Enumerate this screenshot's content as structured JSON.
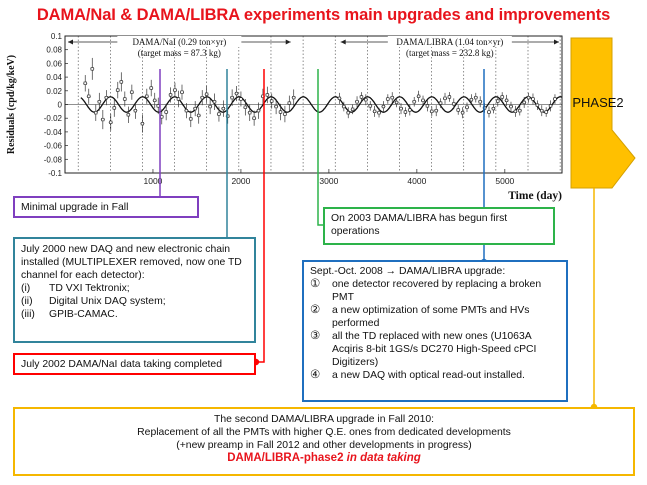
{
  "title": "DAMA/NaI & DAMA/LIBRA experiments main upgrades and improvements",
  "chart_data": {
    "type": "scatter",
    "title": "",
    "xlabel": "Time (day)",
    "ylabel": "Residuals (cpd/kg/keV)",
    "xlim": [
      0,
      5650
    ],
    "ylim": [
      -0.1,
      0.1
    ],
    "xticks": [
      1000,
      2000,
      3000,
      4000,
      5000
    ],
    "yticks": [
      -0.1,
      -0.08,
      -0.06,
      -0.04,
      -0.02,
      0,
      0.02,
      0.04,
      0.06,
      0.08,
      0.1
    ],
    "fit": {
      "amplitude": 0.0112,
      "period": 365.25,
      "phase_day": 152
    },
    "periods": [
      {
        "label": "DAMA/NaI (0.29 ton×yr)",
        "sublabel": "(target mass = 87.3 kg)",
        "x_start": 0,
        "x_end": 2600
      },
      {
        "label": "DAMA/LIBRA (1.04 ton×yr)",
        "sublabel": "(target mass = 232.8 kg)",
        "x_start": 3100,
        "x_end": 5650
      }
    ],
    "points": [
      {
        "x": 230,
        "y": 0.031,
        "err": 0.012
      },
      {
        "x": 270,
        "y": 0.012,
        "err": 0.011
      },
      {
        "x": 310,
        "y": 0.052,
        "err": 0.016
      },
      {
        "x": 350,
        "y": -0.012,
        "err": 0.012
      },
      {
        "x": 390,
        "y": 0.004,
        "err": 0.013
      },
      {
        "x": 430,
        "y": -0.022,
        "err": 0.014
      },
      {
        "x": 470,
        "y": 0.01,
        "err": 0.011
      },
      {
        "x": 520,
        "y": -0.026,
        "err": 0.012
      },
      {
        "x": 560,
        "y": -0.005,
        "err": 0.013
      },
      {
        "x": 600,
        "y": 0.021,
        "err": 0.012
      },
      {
        "x": 640,
        "y": 0.033,
        "err": 0.014
      },
      {
        "x": 680,
        "y": 0.008,
        "err": 0.011
      },
      {
        "x": 720,
        "y": -0.015,
        "err": 0.012
      },
      {
        "x": 760,
        "y": 0.018,
        "err": 0.011
      },
      {
        "x": 800,
        "y": -0.009,
        "err": 0.012
      },
      {
        "x": 880,
        "y": -0.028,
        "err": 0.013
      },
      {
        "x": 930,
        "y": 0.012,
        "err": 0.011
      },
      {
        "x": 980,
        "y": 0.024,
        "err": 0.012
      },
      {
        "x": 1020,
        "y": 0.006,
        "err": 0.011
      },
      {
        "x": 1060,
        "y": -0.002,
        "err": 0.012
      },
      {
        "x": 1100,
        "y": -0.018,
        "err": 0.011
      },
      {
        "x": 1150,
        "y": -0.011,
        "err": 0.012
      },
      {
        "x": 1200,
        "y": 0.014,
        "err": 0.011
      },
      {
        "x": 1250,
        "y": 0.021,
        "err": 0.011
      },
      {
        "x": 1290,
        "y": 0.008,
        "err": 0.012
      },
      {
        "x": 1330,
        "y": 0.018,
        "err": 0.011
      },
      {
        "x": 1380,
        "y": -0.009,
        "err": 0.011
      },
      {
        "x": 1430,
        "y": -0.021,
        "err": 0.012
      },
      {
        "x": 1480,
        "y": -0.006,
        "err": 0.011
      },
      {
        "x": 1520,
        "y": -0.016,
        "err": 0.012
      },
      {
        "x": 1560,
        "y": 0.01,
        "err": 0.011
      },
      {
        "x": 1610,
        "y": 0.015,
        "err": 0.012
      },
      {
        "x": 1650,
        "y": -0.003,
        "err": 0.011
      },
      {
        "x": 1700,
        "y": 0.004,
        "err": 0.012
      },
      {
        "x": 1750,
        "y": -0.014,
        "err": 0.011
      },
      {
        "x": 1800,
        "y": -0.006,
        "err": 0.012
      },
      {
        "x": 1850,
        "y": -0.017,
        "err": 0.011
      },
      {
        "x": 1900,
        "y": 0.01,
        "err": 0.012
      },
      {
        "x": 1950,
        "y": 0.016,
        "err": 0.011
      },
      {
        "x": 2000,
        "y": 0.008,
        "err": 0.011
      },
      {
        "x": 2050,
        "y": -0.004,
        "err": 0.012
      },
      {
        "x": 2100,
        "y": -0.012,
        "err": 0.012
      },
      {
        "x": 2150,
        "y": -0.02,
        "err": 0.011
      },
      {
        "x": 2200,
        "y": -0.009,
        "err": 0.012
      },
      {
        "x": 2250,
        "y": 0.012,
        "err": 0.011
      },
      {
        "x": 2300,
        "y": 0.014,
        "err": 0.012
      },
      {
        "x": 2350,
        "y": 0.005,
        "err": 0.011
      },
      {
        "x": 2400,
        "y": -0.003,
        "err": 0.011
      },
      {
        "x": 2450,
        "y": -0.011,
        "err": 0.012
      },
      {
        "x": 2500,
        "y": -0.014,
        "err": 0.012
      },
      {
        "x": 2550,
        "y": 0.002,
        "err": 0.011
      },
      {
        "x": 2600,
        "y": 0.01,
        "err": 0.012
      },
      {
        "x": 3120,
        "y": 0.009,
        "err": 0.008
      },
      {
        "x": 3170,
        "y": -0.003,
        "err": 0.007
      },
      {
        "x": 3220,
        "y": -0.012,
        "err": 0.008
      },
      {
        "x": 3270,
        "y": -0.007,
        "err": 0.007
      },
      {
        "x": 3320,
        "y": 0.004,
        "err": 0.008
      },
      {
        "x": 3370,
        "y": 0.011,
        "err": 0.007
      },
      {
        "x": 3420,
        "y": 0.007,
        "err": 0.008
      },
      {
        "x": 3470,
        "y": -0.002,
        "err": 0.007
      },
      {
        "x": 3520,
        "y": -0.01,
        "err": 0.008
      },
      {
        "x": 3570,
        "y": -0.012,
        "err": 0.007
      },
      {
        "x": 3620,
        "y": -0.003,
        "err": 0.008
      },
      {
        "x": 3670,
        "y": 0.008,
        "err": 0.007
      },
      {
        "x": 3720,
        "y": 0.01,
        "err": 0.008
      },
      {
        "x": 3770,
        "y": 0.003,
        "err": 0.007
      },
      {
        "x": 3820,
        "y": -0.006,
        "err": 0.008
      },
      {
        "x": 3870,
        "y": -0.011,
        "err": 0.007
      },
      {
        "x": 3920,
        "y": -0.008,
        "err": 0.008
      },
      {
        "x": 3970,
        "y": 0.004,
        "err": 0.007
      },
      {
        "x": 4020,
        "y": 0.012,
        "err": 0.008
      },
      {
        "x": 4070,
        "y": 0.006,
        "err": 0.007
      },
      {
        "x": 4120,
        "y": -0.002,
        "err": 0.008
      },
      {
        "x": 4170,
        "y": -0.01,
        "err": 0.007
      },
      {
        "x": 4220,
        "y": -0.009,
        "err": 0.008
      },
      {
        "x": 4270,
        "y": 0.002,
        "err": 0.007
      },
      {
        "x": 4320,
        "y": 0.009,
        "err": 0.008
      },
      {
        "x": 4370,
        "y": 0.011,
        "err": 0.007
      },
      {
        "x": 4420,
        "y": 0.001,
        "err": 0.008
      },
      {
        "x": 4470,
        "y": -0.008,
        "err": 0.007
      },
      {
        "x": 4520,
        "y": -0.012,
        "err": 0.008
      },
      {
        "x": 4570,
        "y": -0.004,
        "err": 0.007
      },
      {
        "x": 4620,
        "y": 0.007,
        "err": 0.008
      },
      {
        "x": 4670,
        "y": 0.01,
        "err": 0.007
      },
      {
        "x": 4720,
        "y": 0.004,
        "err": 0.008
      },
      {
        "x": 4770,
        "y": -0.005,
        "err": 0.007
      },
      {
        "x": 4820,
        "y": -0.011,
        "err": 0.008
      },
      {
        "x": 4870,
        "y": -0.006,
        "err": 0.007
      },
      {
        "x": 4920,
        "y": 0.005,
        "err": 0.008
      },
      {
        "x": 4970,
        "y": 0.011,
        "err": 0.007
      },
      {
        "x": 5020,
        "y": 0.006,
        "err": 0.008
      },
      {
        "x": 5070,
        "y": -0.003,
        "err": 0.007
      },
      {
        "x": 5120,
        "y": -0.01,
        "err": 0.008
      },
      {
        "x": 5170,
        "y": -0.009,
        "err": 0.007
      },
      {
        "x": 5220,
        "y": 0.003,
        "err": 0.008
      },
      {
        "x": 5270,
        "y": 0.01,
        "err": 0.007
      },
      {
        "x": 5320,
        "y": 0.008,
        "err": 0.008
      },
      {
        "x": 5370,
        "y": -0.001,
        "err": 0.007
      },
      {
        "x": 5420,
        "y": -0.009,
        "err": 0.008
      },
      {
        "x": 5470,
        "y": -0.011,
        "err": 0.007
      },
      {
        "x": 5520,
        "y": -0.002,
        "err": 0.008
      },
      {
        "x": 5570,
        "y": 0.008,
        "err": 0.007
      }
    ]
  },
  "phase2_label": "PHASE2",
  "notes": {
    "minimal": "Minimal upgrade in Fall",
    "july2000": {
      "text": "July 2000 new DAQ and new electronic chain installed (MULTIPLEXER removed, now one TD channel for each detector):",
      "items": [
        {
          "label": "(i)",
          "text": "TD VXI Tektronix;"
        },
        {
          "label": "(ii)",
          "text": "Digital Unix DAQ system;"
        },
        {
          "label": "(iii)",
          "text": "GPIB-CAMAC."
        }
      ]
    },
    "july2002": "July 2002 DAMA/NaI data taking completed",
    "libra2003": "On 2003 DAMA/LIBRA has begun first operations",
    "upgrade2008": {
      "text": "Sept.-Oct. 2008 → DAMA/LIBRA upgrade:",
      "items": [
        {
          "label": "①",
          "text": "one detector recovered by replacing a broken PMT"
        },
        {
          "label": "②",
          "text": "a new optimization of some PMTs and HVs performed"
        },
        {
          "label": "③",
          "text": "all the TD replaced with new ones (U1063A Acqiris 8-bit 1GS/s DC270 High-Speed cPCI Digitizers)"
        },
        {
          "label": "④",
          "text": "a new DAQ with optical read-out installed."
        }
      ]
    },
    "upgrade2010": {
      "line1": "The second DAMA/LIBRA upgrade in Fall 2010:",
      "line2": "Replacement of all the PMTs with higher Q.E. ones from dedicated developments",
      "line3": "(+new preamp in Fall 2012 and other developments in progress)",
      "line4_a": "DAMA/LIBRA-phase2",
      "line4_b": " in data taking"
    }
  },
  "colors": {
    "title": "#e8141c",
    "purple": "#7f3fbf",
    "teal": "#31849b",
    "red": "#ff0000",
    "green": "#2db34a",
    "blue": "#1f6fbf",
    "gold": "#f5b700",
    "phase2_fill": "#ffc000"
  }
}
